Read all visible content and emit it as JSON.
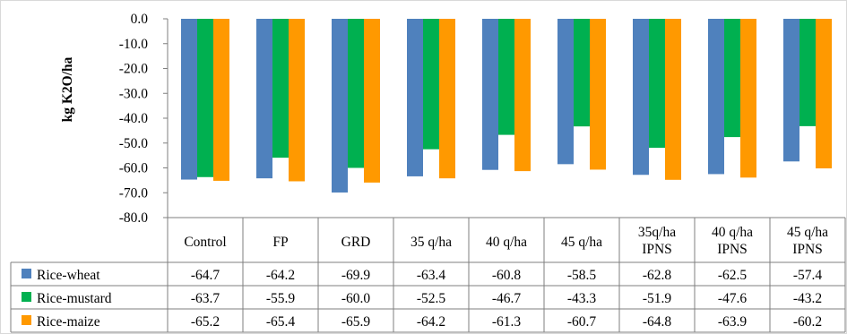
{
  "chart_data": {
    "type": "bar",
    "title": "",
    "xlabel": "",
    "ylabel": "kg K2O/ha",
    "ylim": [
      -80,
      0
    ],
    "yticks": [
      "0.0",
      "-10.0",
      "-20.0",
      "-30.0",
      "-40.0",
      "-50.0",
      "-60.0",
      "-70.0",
      "-80.0"
    ],
    "categories": [
      [
        "Control"
      ],
      [
        "FP"
      ],
      [
        "GRD"
      ],
      [
        "35 q/ha"
      ],
      [
        "40 q/ha"
      ],
      [
        "45 q/ha"
      ],
      [
        "35q/ha",
        "IPNS"
      ],
      [
        "40 q/ha",
        "IPNS"
      ],
      [
        "45 q/ha",
        "IPNS"
      ]
    ],
    "series": [
      {
        "name": "Rice-wheat",
        "color": "#4f81bd",
        "values": [
          -64.7,
          -64.2,
          -69.9,
          -63.4,
          -60.8,
          -58.5,
          -62.8,
          -62.5,
          -57.4
        ],
        "labels": [
          "-64.7",
          "-64.2",
          "-69.9",
          "-63.4",
          "-60.8",
          "-58.5",
          "-62.8",
          "-62.5",
          "-57.4"
        ]
      },
      {
        "name": "Rice-mustard",
        "color": "#00b050",
        "values": [
          -63.7,
          -55.9,
          -60.0,
          -52.5,
          -46.7,
          -43.3,
          -51.9,
          -47.6,
          -43.2
        ],
        "labels": [
          "-63.7",
          "-55.9",
          "-60.0",
          "-52.5",
          "-46.7",
          "-43.3",
          "-51.9",
          "-47.6",
          "-43.2"
        ]
      },
      {
        "name": "Rice-maize",
        "color": "#ff9900",
        "values": [
          -65.2,
          -65.4,
          -65.9,
          -64.2,
          -61.3,
          -60.7,
          -64.8,
          -63.9,
          -60.2
        ],
        "labels": [
          "-65.2",
          "-65.4",
          "-65.9",
          "-64.2",
          "-61.3",
          "-60.7",
          "-64.8",
          "-63.9",
          "-60.2"
        ]
      }
    ],
    "data_table": true,
    "legend": "in-table-left",
    "grid": false
  }
}
